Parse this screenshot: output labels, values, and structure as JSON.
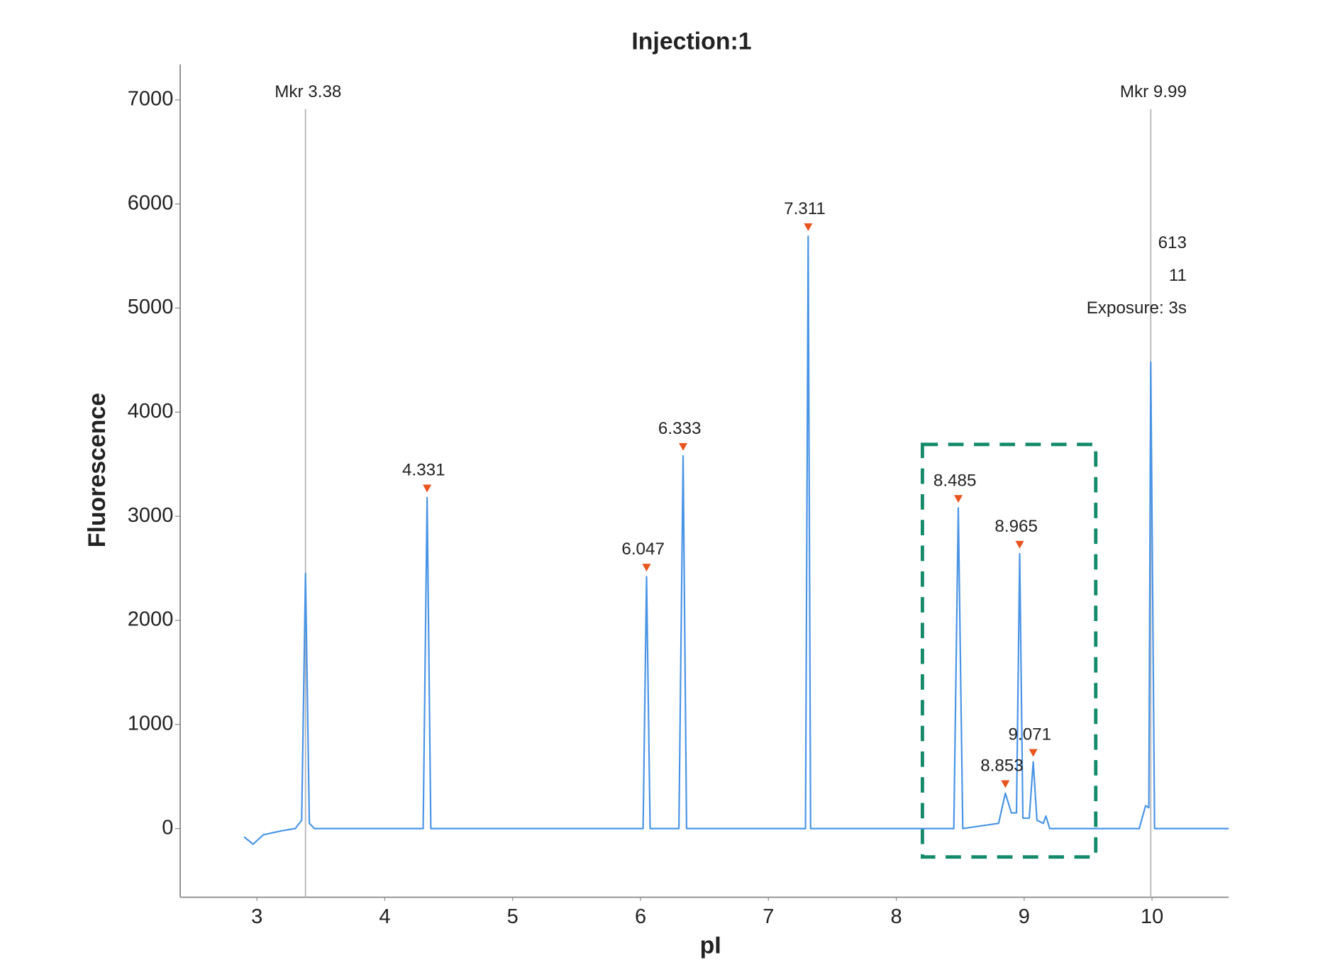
{
  "chart_data": {
    "type": "line",
    "title": "Injection:1",
    "x_label": "pI",
    "y_label": "Fluorescence",
    "xlim": [
      2.4,
      10.6
    ],
    "ylim": [
      -660,
      7340
    ],
    "xticks": [
      3,
      4,
      5,
      6,
      7,
      8,
      9,
      10
    ],
    "yticks": [
      0,
      1000,
      2000,
      3000,
      4000,
      5000,
      6000,
      7000
    ],
    "grid": false,
    "x": [
      2.9,
      2.97,
      3.05,
      3.2,
      3.3,
      3.35,
      3.38,
      3.41,
      3.45,
      4.3,
      4.331,
      4.36,
      6.02,
      6.047,
      6.075,
      6.3,
      6.333,
      6.36,
      7.29,
      7.311,
      7.33,
      8.45,
      8.485,
      8.52,
      8.8,
      8.853,
      8.9,
      8.94,
      8.965,
      8.99,
      9.04,
      9.071,
      9.1,
      9.15,
      9.17,
      9.2,
      9.9,
      9.95,
      9.975,
      9.99,
      10.02,
      10.6
    ],
    "series": [
      {
        "name": "Fluorescence",
        "color": "#4a94e6",
        "values": [
          -80,
          -150,
          -60,
          -20,
          0,
          80,
          2450,
          50,
          0,
          0,
          3180,
          0,
          0,
          2420,
          0,
          0,
          3580,
          0,
          0,
          5690,
          0,
          0,
          3080,
          0,
          50,
          340,
          150,
          150,
          2640,
          100,
          100,
          640,
          80,
          50,
          120,
          0,
          0,
          220,
          200,
          4480,
          0,
          0
        ]
      }
    ],
    "peaks": [
      {
        "x": 4.331,
        "y": 3180
      },
      {
        "x": 6.047,
        "y": 2420
      },
      {
        "x": 6.333,
        "y": 3580
      },
      {
        "x": 7.311,
        "y": 5690
      },
      {
        "x": 8.485,
        "y": 3080
      },
      {
        "x": 8.853,
        "y": 340
      },
      {
        "x": 8.965,
        "y": 2640
      },
      {
        "x": 9.071,
        "y": 640
      }
    ],
    "peak_color": "#e8531e",
    "markers": [
      {
        "label": "Mkr 3.38",
        "x": 3.38
      },
      {
        "label": "Mkr 9.99",
        "x": 9.99
      }
    ],
    "info": [
      "613",
      "11",
      "Exposure: 3s"
    ]
  }
}
